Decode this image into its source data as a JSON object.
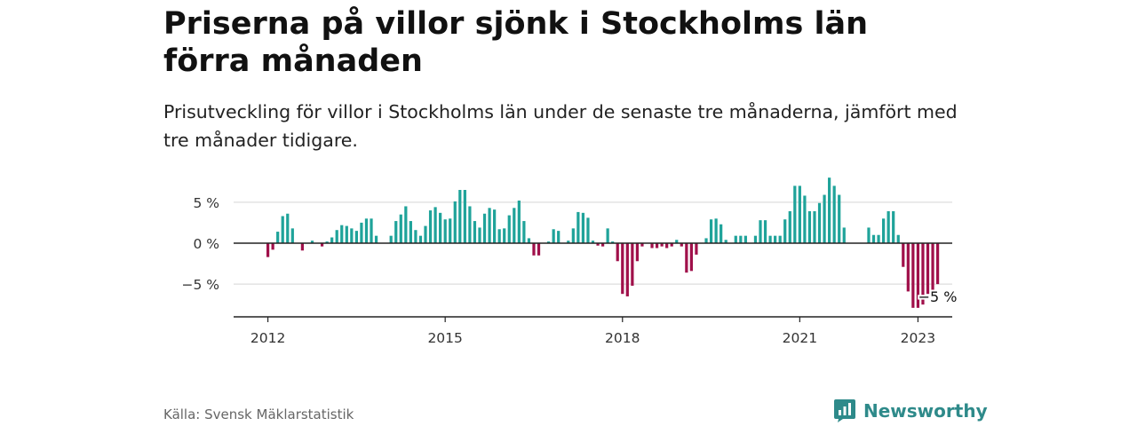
{
  "title": "Priserna på villor sjönk i Stockholms län förra månaden",
  "subtitle": "Prisutveckling för villor i Stockholms län under de senaste tre månaderna, jämfört med tre månader tidigare.",
  "source": "Källa: Svensk Mäklarstatistik",
  "brand": {
    "name": "Newsworthy",
    "icon": "newsworthy-logo-icon",
    "color": "#2e8a8a"
  },
  "chart_data": {
    "type": "bar",
    "ylabel": "",
    "xlabel": "",
    "y_ticks": [
      {
        "value": 5,
        "label": "5 %"
      },
      {
        "value": 0,
        "label": "0 %"
      },
      {
        "value": -5,
        "label": "−5 %"
      }
    ],
    "x_ticks": [
      {
        "value": 2012,
        "label": "2012"
      },
      {
        "value": 2015,
        "label": "2015"
      },
      {
        "value": 2018,
        "label": "2018"
      },
      {
        "value": 2021,
        "label": "2021"
      },
      {
        "value": 2023,
        "label": "2023"
      }
    ],
    "ylim": [
      -9,
      6.5
    ],
    "xlim": [
      2011.42,
      2023.58
    ],
    "grid": true,
    "colors": {
      "positive": "#1fa39a",
      "negative": "#a0104a",
      "grid": "#dddddd",
      "axis": "#222222"
    },
    "annotation": {
      "label": "−5 %"
    },
    "x_start": "2012-01",
    "values": [
      -1.7,
      -0.8,
      1.4,
      3.3,
      3.6,
      1.8,
      0,
      -0.9,
      0,
      0.3,
      0,
      -0.4,
      0.2,
      0.7,
      1.6,
      2.2,
      2.1,
      1.8,
      1.5,
      2.5,
      3.0,
      3.0,
      0.9,
      0,
      0,
      0.9,
      2.7,
      3.5,
      4.5,
      2.7,
      1.6,
      0.9,
      2.1,
      4.0,
      4.4,
      3.7,
      2.9,
      3.0,
      5.1,
      6.5,
      6.5,
      4.5,
      2.7,
      1.9,
      3.6,
      4.3,
      4.1,
      1.7,
      1.8,
      3.4,
      4.3,
      5.2,
      2.7,
      0.6,
      -1.5,
      -1.5,
      0,
      0.2,
      1.7,
      1.5,
      0,
      0.3,
      1.8,
      3.8,
      3.7,
      3.1,
      0.3,
      -0.3,
      -0.4,
      1.8,
      0.2,
      -2.2,
      -6.2,
      -6.5,
      -5.2,
      -2.2,
      -0.4,
      0,
      -0.6,
      -0.6,
      -0.4,
      -0.6,
      -0.4,
      0.4,
      -0.4,
      -3.6,
      -3.4,
      -1.4,
      0,
      0.6,
      2.9,
      3.0,
      2.3,
      0.4,
      0,
      0.9,
      0.9,
      0.9,
      0,
      0.9,
      2.8,
      2.8,
      0.9,
      0.9,
      0.9,
      2.9,
      3.9,
      7.0,
      7.0,
      5.8,
      3.9,
      3.9,
      4.9,
      5.9,
      8.0,
      7.0,
      5.9,
      1.9,
      0,
      0,
      0,
      0,
      1.9,
      1.0,
      1.0,
      3.0,
      3.9,
      3.9,
      1.0,
      -2.9,
      -5.9,
      -7.9,
      -7.9,
      -7.5,
      -6.2,
      -5.7,
      -5.0
    ]
  }
}
